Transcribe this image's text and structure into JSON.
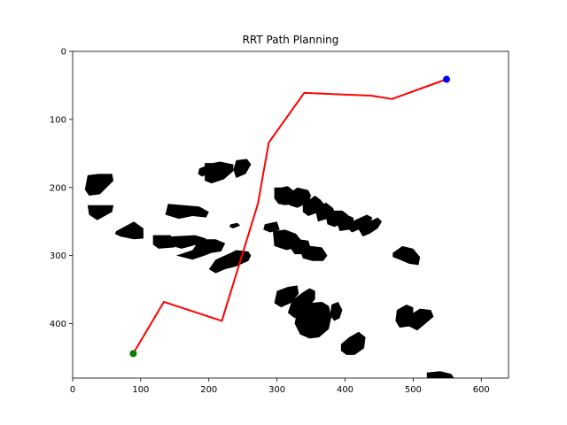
{
  "chart_data": {
    "type": "line",
    "title": "RRT Path Planning",
    "xlabel": "",
    "ylabel": "",
    "xlim": [
      0,
      640
    ],
    "ylim": [
      480,
      0
    ],
    "y_axis_inverted": true,
    "grid": false,
    "x_ticks": [
      0,
      100,
      200,
      300,
      400,
      500,
      600
    ],
    "y_ticks": [
      0,
      100,
      200,
      300,
      400
    ],
    "path": {
      "color": "#ff0000",
      "points": [
        [
          89,
          444
        ],
        [
          134,
          368
        ],
        [
          219,
          396
        ],
        [
          272,
          224
        ],
        [
          288,
          134
        ],
        [
          340,
          61
        ],
        [
          438,
          65
        ],
        [
          469,
          70
        ],
        [
          549,
          41
        ]
      ]
    },
    "start": {
      "x": 89,
      "y": 444,
      "color": "#008000"
    },
    "goal": {
      "x": 549,
      "y": 41,
      "color": "#0000ff"
    },
    "obstacle_color": "#000000",
    "obstacles": [
      {
        "points": [
          [
            22,
            182
          ],
          [
            38,
            180
          ],
          [
            58,
            180
          ],
          [
            60,
            190
          ],
          [
            40,
            210
          ],
          [
            24,
            212
          ],
          [
            18,
            203
          ]
        ]
      },
      {
        "points": [
          [
            22,
            226
          ],
          [
            60,
            226
          ],
          [
            58,
            236
          ],
          [
            36,
            248
          ],
          [
            24,
            240
          ]
        ]
      },
      {
        "points": [
          [
            64,
            264
          ],
          [
            90,
            250
          ],
          [
            104,
            260
          ],
          [
            104,
            275
          ],
          [
            90,
            276
          ],
          [
            70,
            272
          ],
          [
            62,
            268
          ]
        ]
      },
      {
        "points": [
          [
            118,
            270
          ],
          [
            144,
            270
          ],
          [
            150,
            288
          ],
          [
            126,
            290
          ],
          [
            118,
            284
          ]
        ]
      },
      {
        "points": [
          [
            142,
            272
          ],
          [
            180,
            270
          ],
          [
            196,
            275
          ],
          [
            190,
            282
          ],
          [
            160,
            290
          ],
          [
            146,
            286
          ]
        ]
      },
      {
        "points": [
          [
            152,
            300
          ],
          [
            176,
            292
          ],
          [
            184,
            280
          ],
          [
            196,
            276
          ],
          [
            210,
            276
          ],
          [
            224,
            282
          ],
          [
            218,
            294
          ],
          [
            204,
            296
          ],
          [
            194,
            300
          ],
          [
            176,
            306
          ]
        ]
      },
      {
        "points": [
          [
            200,
            320
          ],
          [
            210,
            306
          ],
          [
            232,
            296
          ],
          [
            240,
            292
          ],
          [
            258,
            294
          ],
          [
            262,
            300
          ],
          [
            258,
            308
          ],
          [
            240,
            316
          ],
          [
            224,
            320
          ],
          [
            210,
            326
          ]
        ]
      },
      {
        "points": [
          [
            140,
            224
          ],
          [
            186,
            228
          ],
          [
            200,
            236
          ],
          [
            196,
            244
          ],
          [
            176,
            242
          ],
          [
            156,
            246
          ],
          [
            136,
            240
          ]
        ]
      },
      {
        "points": [
          [
            236,
            174
          ],
          [
            240,
            160
          ],
          [
            256,
            158
          ],
          [
            262,
            166
          ],
          [
            254,
            180
          ],
          [
            240,
            186
          ]
        ]
      },
      {
        "points": [
          [
            194,
            164
          ],
          [
            206,
            164
          ],
          [
            216,
            162
          ],
          [
            236,
            166
          ],
          [
            236,
            176
          ],
          [
            222,
            188
          ],
          [
            204,
            194
          ],
          [
            194,
            190
          ]
        ]
      },
      {
        "points": [
          [
            296,
            200
          ],
          [
            306,
            200
          ],
          [
            316,
            198
          ],
          [
            326,
            206
          ],
          [
            324,
            224
          ],
          [
            312,
            226
          ],
          [
            302,
            224
          ],
          [
            296,
            216
          ]
        ]
      },
      {
        "points": [
          [
            316,
            210
          ],
          [
            330,
            200
          ],
          [
            346,
            204
          ],
          [
            350,
            212
          ],
          [
            346,
            222
          ],
          [
            330,
            230
          ],
          [
            318,
            226
          ]
        ]
      },
      {
        "points": [
          [
            338,
            224
          ],
          [
            356,
            212
          ],
          [
            364,
            218
          ],
          [
            372,
            228
          ],
          [
            362,
            236
          ],
          [
            346,
            242
          ],
          [
            338,
            236
          ]
        ]
      },
      {
        "points": [
          [
            356,
            232
          ],
          [
            372,
            222
          ],
          [
            382,
            230
          ],
          [
            386,
            238
          ],
          [
            374,
            246
          ],
          [
            360,
            250
          ]
        ]
      },
      {
        "points": [
          [
            372,
            244
          ],
          [
            384,
            234
          ],
          [
            396,
            234
          ],
          [
            404,
            240
          ],
          [
            400,
            252
          ],
          [
            384,
            258
          ],
          [
            374,
            254
          ]
        ]
      },
      {
        "points": [
          [
            388,
            252
          ],
          [
            402,
            240
          ],
          [
            412,
            244
          ],
          [
            414,
            256
          ],
          [
            406,
            262
          ],
          [
            392,
            264
          ]
        ]
      },
      {
        "points": [
          [
            404,
            260
          ],
          [
            414,
            248
          ],
          [
            432,
            240
          ],
          [
            440,
            244
          ],
          [
            436,
            256
          ],
          [
            420,
            262
          ],
          [
            410,
            266
          ]
        ]
      },
      {
        "points": [
          [
            420,
            262
          ],
          [
            436,
            250
          ],
          [
            448,
            244
          ],
          [
            454,
            250
          ],
          [
            448,
            260
          ],
          [
            436,
            268
          ],
          [
            426,
            272
          ]
        ]
      },
      {
        "points": [
          [
            294,
            264
          ],
          [
            312,
            262
          ],
          [
            328,
            268
          ],
          [
            336,
            278
          ],
          [
            330,
            288
          ],
          [
            314,
            292
          ],
          [
            296,
            286
          ]
        ]
      },
      {
        "points": [
          [
            316,
            284
          ],
          [
            332,
            276
          ],
          [
            346,
            278
          ],
          [
            350,
            290
          ],
          [
            340,
            298
          ],
          [
            326,
            298
          ]
        ]
      },
      {
        "points": [
          [
            334,
            292
          ],
          [
            350,
            286
          ],
          [
            366,
            288
          ],
          [
            374,
            300
          ],
          [
            368,
            308
          ],
          [
            352,
            308
          ],
          [
            338,
            304
          ]
        ]
      },
      {
        "points": [
          [
            300,
            352
          ],
          [
            316,
            346
          ],
          [
            330,
            344
          ],
          [
            332,
            356
          ],
          [
            320,
            370
          ],
          [
            306,
            376
          ],
          [
            296,
            370
          ]
        ]
      },
      {
        "points": [
          [
            322,
            366
          ],
          [
            338,
            354
          ],
          [
            348,
            348
          ],
          [
            356,
            352
          ],
          [
            356,
            364
          ],
          [
            340,
            384
          ],
          [
            326,
            392
          ],
          [
            316,
            384
          ]
        ]
      },
      {
        "points": [
          [
            330,
            378
          ],
          [
            346,
            370
          ],
          [
            366,
            368
          ],
          [
            376,
            374
          ],
          [
            380,
            390
          ],
          [
            376,
            408
          ],
          [
            362,
            420
          ],
          [
            348,
            422
          ],
          [
            334,
            416
          ],
          [
            326,
            400
          ]
        ]
      },
      {
        "points": [
          [
            380,
            372
          ],
          [
            390,
            368
          ],
          [
            396,
            380
          ],
          [
            392,
            392
          ],
          [
            384,
            396
          ],
          [
            378,
            388
          ]
        ]
      },
      {
        "points": [
          [
            394,
            430
          ],
          [
            406,
            420
          ],
          [
            420,
            412
          ],
          [
            430,
            420
          ],
          [
            428,
            436
          ],
          [
            414,
            446
          ],
          [
            402,
            446
          ],
          [
            394,
            440
          ]
        ]
      },
      {
        "points": [
          [
            470,
            296
          ],
          [
            484,
            286
          ],
          [
            500,
            290
          ],
          [
            510,
            302
          ],
          [
            508,
            314
          ],
          [
            494,
            312
          ],
          [
            480,
            306
          ],
          [
            470,
            302
          ]
        ]
      },
      {
        "points": [
          [
            476,
            380
          ],
          [
            490,
            372
          ],
          [
            500,
            376
          ],
          [
            500,
            390
          ],
          [
            494,
            404
          ],
          [
            480,
            406
          ],
          [
            474,
            396
          ]
        ]
      },
      {
        "points": [
          [
            494,
            388
          ],
          [
            510,
            378
          ],
          [
            526,
            380
          ],
          [
            530,
            390
          ],
          [
            518,
            400
          ],
          [
            506,
            410
          ],
          [
            494,
            404
          ]
        ]
      },
      {
        "points": [
          [
            520,
            472
          ],
          [
            540,
            470
          ],
          [
            556,
            474
          ],
          [
            560,
            480
          ],
          [
            520,
            480
          ]
        ]
      },
      {
        "points": [
          [
            282,
            254
          ],
          [
            300,
            250
          ],
          [
            304,
            262
          ],
          [
            290,
            266
          ],
          [
            280,
            262
          ]
        ]
      },
      {
        "points": [
          [
            232,
            254
          ],
          [
            242,
            252
          ],
          [
            246,
            256
          ],
          [
            236,
            260
          ],
          [
            230,
            258
          ]
        ]
      },
      {
        "points": [
          [
            186,
            172
          ],
          [
            196,
            168
          ],
          [
            198,
            180
          ],
          [
            190,
            184
          ],
          [
            184,
            180
          ]
        ]
      }
    ]
  }
}
